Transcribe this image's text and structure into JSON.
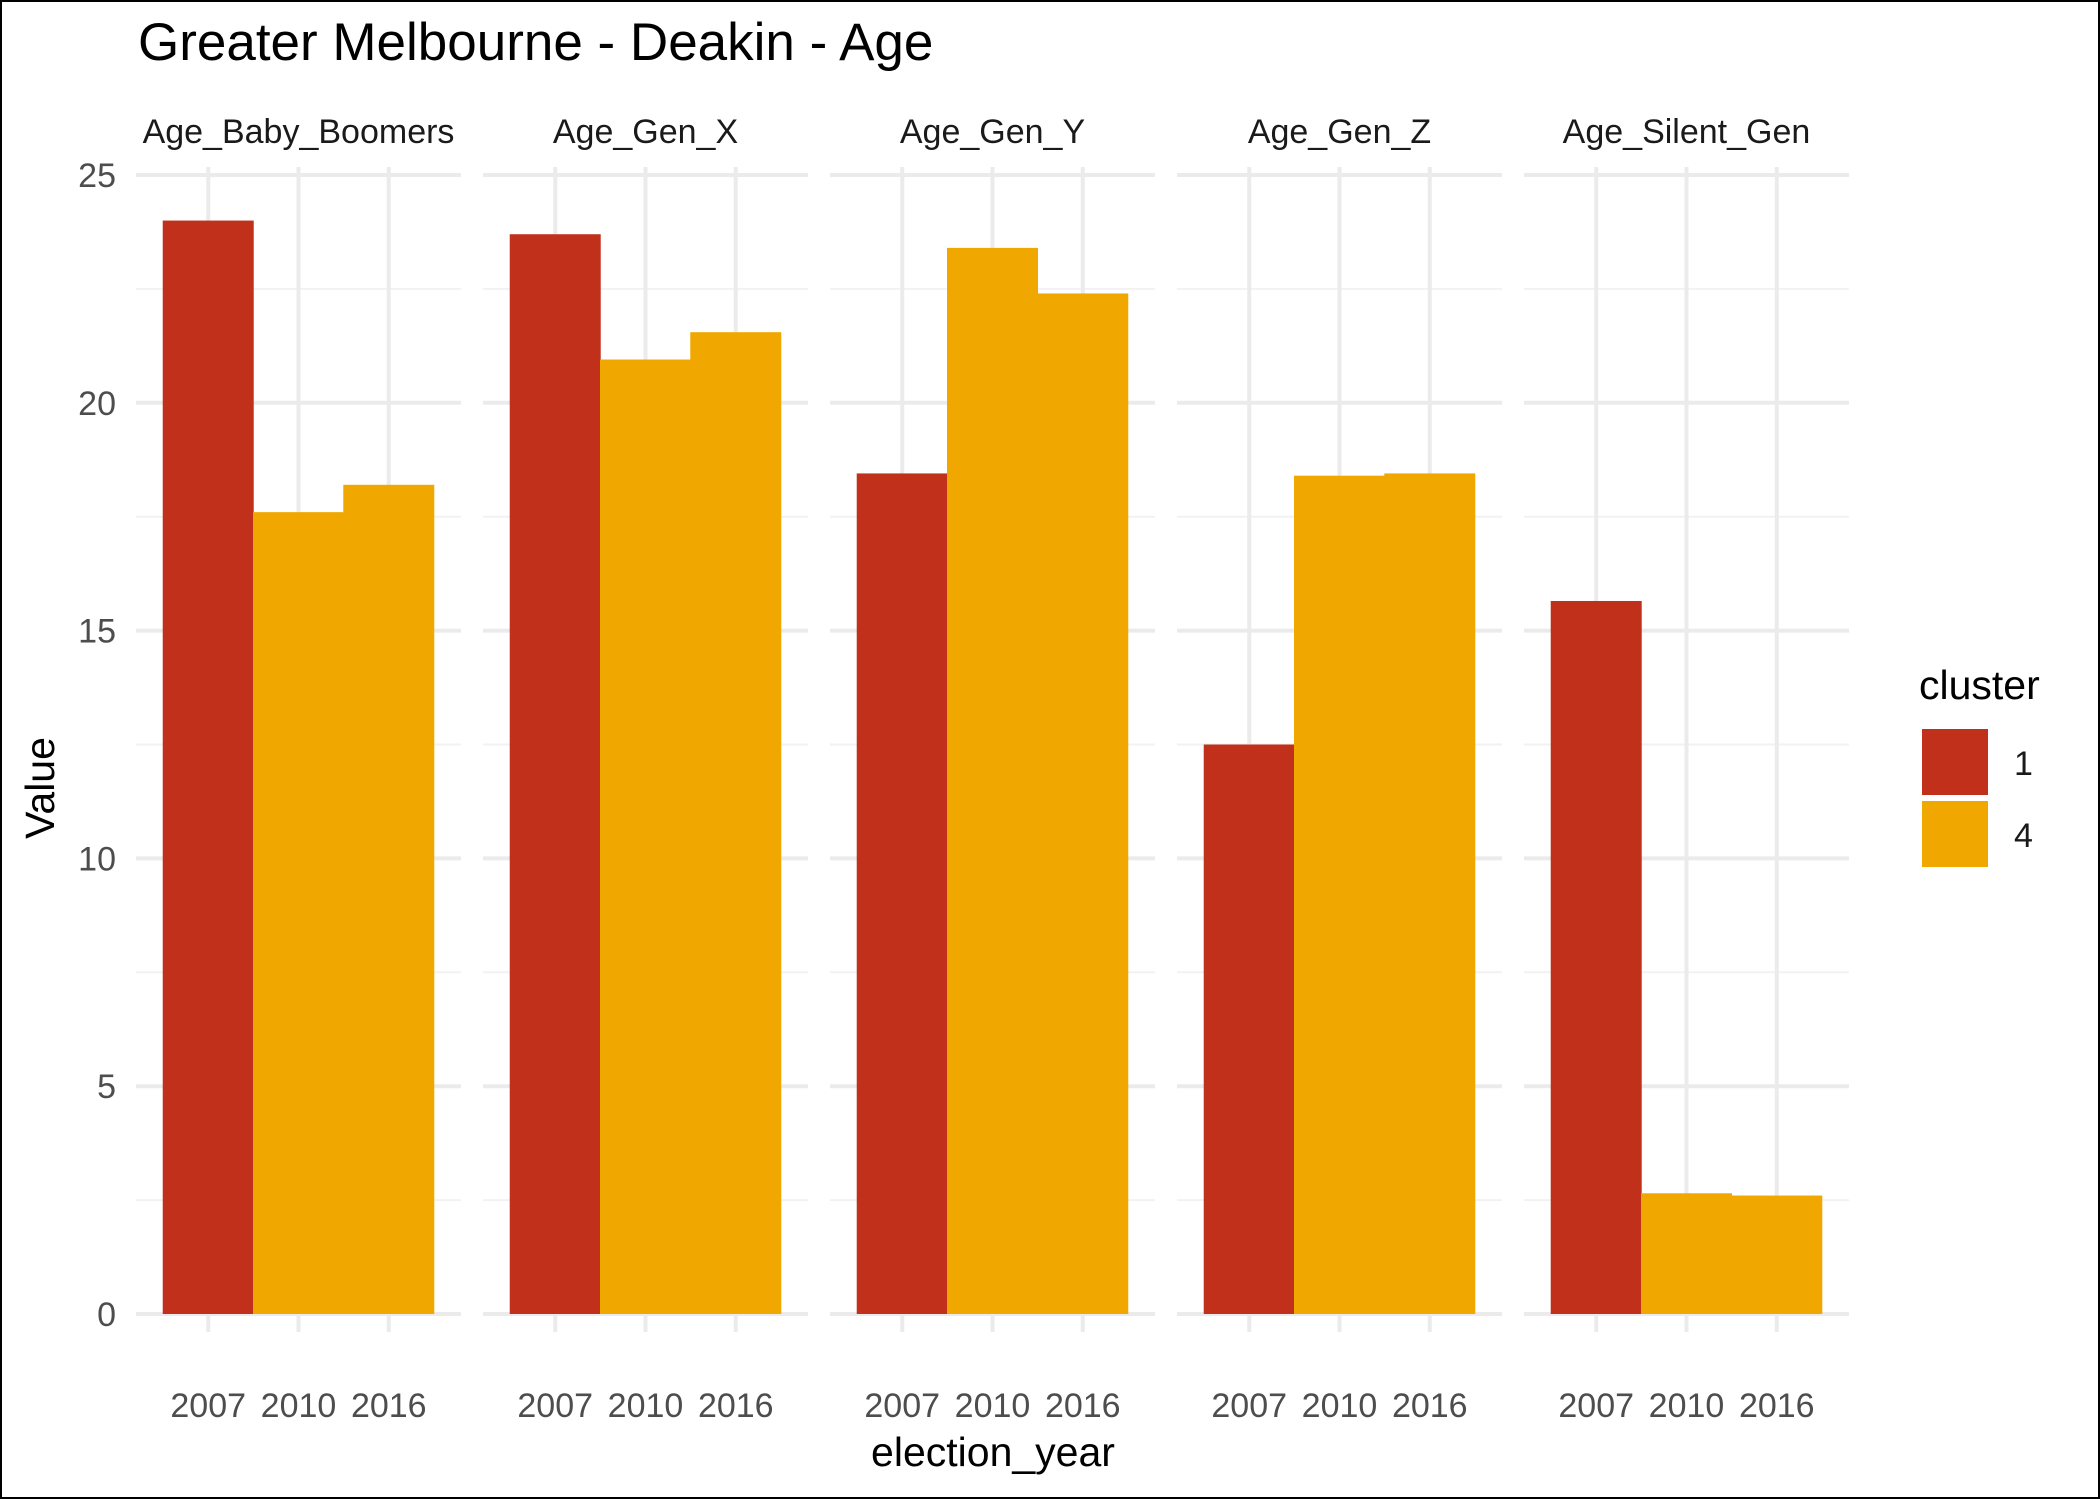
{
  "chart_data": {
    "type": "bar",
    "title": "Greater Melbourne - Deakin - Age",
    "xlabel": "election_year",
    "ylabel": "Value",
    "ylim": [
      0,
      25
    ],
    "y_ticks": [
      0,
      5,
      10,
      15,
      20,
      25
    ],
    "x_categories": [
      "2007",
      "2010",
      "2016"
    ],
    "grid": true,
    "legend": {
      "title": "cluster",
      "placement": "right",
      "entries": [
        {
          "label": "1",
          "color": "#C0301A"
        },
        {
          "label": "4",
          "color": "#F0A800"
        }
      ]
    },
    "facets": [
      {
        "name": "Age_Baby_Boomers",
        "bars": [
          {
            "x": "2007",
            "value": 24.0,
            "cluster": "1"
          },
          {
            "x": "2010",
            "value": 17.6,
            "cluster": "4"
          },
          {
            "x": "2016",
            "value": 18.2,
            "cluster": "4"
          }
        ]
      },
      {
        "name": "Age_Gen_X",
        "bars": [
          {
            "x": "2007",
            "value": 23.7,
            "cluster": "1"
          },
          {
            "x": "2010",
            "value": 20.95,
            "cluster": "4"
          },
          {
            "x": "2016",
            "value": 21.55,
            "cluster": "4"
          }
        ]
      },
      {
        "name": "Age_Gen_Y",
        "bars": [
          {
            "x": "2007",
            "value": 18.45,
            "cluster": "1"
          },
          {
            "x": "2010",
            "value": 23.4,
            "cluster": "4"
          },
          {
            "x": "2016",
            "value": 22.4,
            "cluster": "4"
          }
        ]
      },
      {
        "name": "Age_Gen_Z",
        "bars": [
          {
            "x": "2007",
            "value": 12.5,
            "cluster": "1"
          },
          {
            "x": "2010",
            "value": 18.4,
            "cluster": "4"
          },
          {
            "x": "2016",
            "value": 18.45,
            "cluster": "4"
          }
        ]
      },
      {
        "name": "Age_Silent_Gen",
        "bars": [
          {
            "x": "2007",
            "value": 15.65,
            "cluster": "1"
          },
          {
            "x": "2010",
            "value": 2.65,
            "cluster": "4"
          },
          {
            "x": "2016",
            "value": 2.6,
            "cluster": "4"
          }
        ]
      }
    ]
  }
}
